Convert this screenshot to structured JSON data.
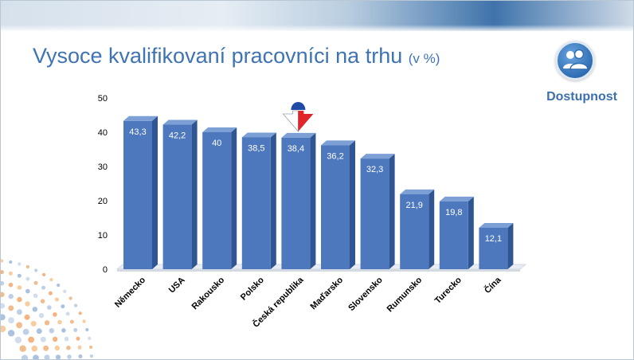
{
  "title": {
    "main": "Vysoce kvalifikovaní pracovníci na trhu",
    "unit": "(v %)"
  },
  "badge": {
    "label": "Dostupnost",
    "icon": "people-icon"
  },
  "colors": {
    "title": "#3e73b4",
    "bar_front": "#4d78bd",
    "bar_side": "#2f5592",
    "bar_top": "#7c9fd6"
  },
  "chart_data": {
    "type": "bar",
    "title": "Vysoce kvalifikovaní pracovníci na trhu (v %)",
    "xlabel": "",
    "ylabel": "",
    "ylim": [
      0,
      50
    ],
    "yticks": [
      0,
      10,
      20,
      30,
      40,
      50
    ],
    "grid": false,
    "legend": "none",
    "categories": [
      "Německo",
      "USA",
      "Rakousko",
      "Polsko",
      "Česká republika",
      "Maďarsko",
      "Slovensko",
      "Rumunsko",
      "Turecko",
      "Čína"
    ],
    "values": [
      43.3,
      42.2,
      40,
      38.5,
      38.4,
      36.2,
      32.3,
      21.9,
      19.8,
      12.1
    ],
    "value_labels": [
      "43,3",
      "42,2",
      "40",
      "38,5",
      "38,4",
      "36,2",
      "32,3",
      "21,9",
      "19,8",
      "12,1"
    ],
    "highlight_category": "Česká republika",
    "highlight_marker": "flag-arrow-icon"
  }
}
